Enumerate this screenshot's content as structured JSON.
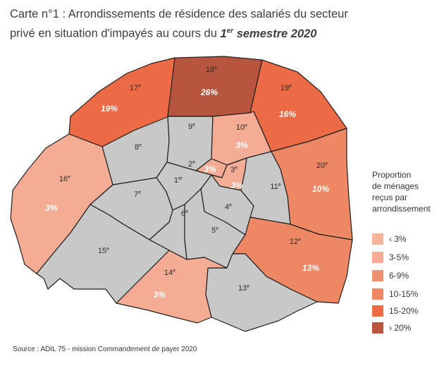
{
  "title": {
    "line1": "Carte n°1 : Arrondissements de résidence des salariés du secteur",
    "line2_prefix": "privé en situation d'impayés au cours du ",
    "line2_em_num": "1",
    "line2_em_sup": "er",
    "line2_em_rest": " semestre 2020"
  },
  "colors": {
    "grey": "#c8c8c8",
    "lt3": "#f7b49b",
    "r3_5": "#f4ad94",
    "r6_9": "#f08f70",
    "r10_15": "#ee8763",
    "r15_20": "#ec6b45",
    "gt20": "#b8553e"
  },
  "legend": {
    "title_lines": [
      "Proportion",
      "de ménages",
      "reçus par",
      "arrondissement"
    ],
    "items": [
      {
        "label": "‹ 3%",
        "color": "#f7b49b"
      },
      {
        "label": "3-5%",
        "color": "#f4ad94"
      },
      {
        "label": "6-9%",
        "color": "#f08f70"
      },
      {
        "label": "10-15%",
        "color": "#ee8763"
      },
      {
        "label": "15-20%",
        "color": "#ec6b45"
      },
      {
        "label": "› 20%",
        "color": "#b8553e"
      }
    ]
  },
  "arrondissements": [
    {
      "id": "1",
      "num": "1",
      "sup": "er",
      "value": "",
      "fill": "grey"
    },
    {
      "id": "2",
      "num": "2",
      "sup": "e",
      "value": "3%",
      "fill": "r3_5"
    },
    {
      "id": "3",
      "num": "3",
      "sup": "e",
      "value": "3%",
      "fill": "r3_5"
    },
    {
      "id": "4",
      "num": "4",
      "sup": "e",
      "value": "",
      "fill": "grey"
    },
    {
      "id": "5",
      "num": "5",
      "sup": "e",
      "value": "",
      "fill": "grey"
    },
    {
      "id": "6",
      "num": "6",
      "sup": "e",
      "value": "",
      "fill": "grey"
    },
    {
      "id": "7",
      "num": "7",
      "sup": "e",
      "value": "",
      "fill": "grey"
    },
    {
      "id": "8",
      "num": "8",
      "sup": "e",
      "value": "",
      "fill": "grey"
    },
    {
      "id": "9",
      "num": "9",
      "sup": "e",
      "value": "",
      "fill": "grey"
    },
    {
      "id": "10",
      "num": "10",
      "sup": "e",
      "value": "3%",
      "fill": "r3_5"
    },
    {
      "id": "11",
      "num": "11",
      "sup": "e",
      "value": "",
      "fill": "grey"
    },
    {
      "id": "12",
      "num": "12",
      "sup": "e",
      "value": "13%",
      "fill": "r10_15"
    },
    {
      "id": "13",
      "num": "13",
      "sup": "e",
      "value": "",
      "fill": "grey"
    },
    {
      "id": "14",
      "num": "14",
      "sup": "e",
      "value": "3%",
      "fill": "r3_5"
    },
    {
      "id": "15",
      "num": "15",
      "sup": "e",
      "value": "",
      "fill": "grey"
    },
    {
      "id": "16",
      "num": "16",
      "sup": "e",
      "value": "3%",
      "fill": "r3_5"
    },
    {
      "id": "17",
      "num": "17",
      "sup": "e",
      "value": "19%",
      "fill": "r15_20"
    },
    {
      "id": "18",
      "num": "18",
      "sup": "e",
      "value": "26%",
      "fill": "gt20"
    },
    {
      "id": "19",
      "num": "19",
      "sup": "e",
      "value": "16%",
      "fill": "r15_20"
    },
    {
      "id": "20",
      "num": "20",
      "sup": "e",
      "value": "10%",
      "fill": "r10_15"
    }
  ],
  "source": "Source : ADIL 75 - mission Commandement de payer 2020"
}
